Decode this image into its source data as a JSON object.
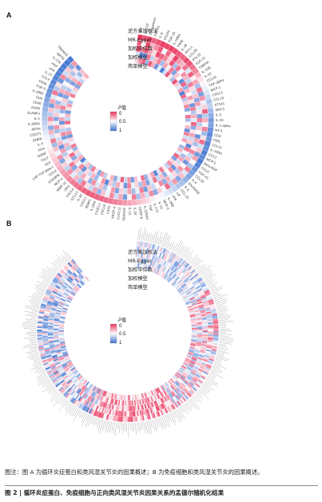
{
  "panel_a": {
    "letter": "A",
    "ring_labels": [
      "逆方差加权法",
      "MR-Egger",
      "加权中位数",
      "加权模型",
      "简单模型"
    ],
    "legend": {
      "title": "P",
      "title_suffix": "值",
      "ticks": [
        "0",
        "0.5",
        "1"
      ]
    },
    "genes": [
      "IL-7",
      "CCL23",
      "IFN-gamma",
      "FGFR1",
      "IL-8",
      "CD244",
      "FGF-19",
      "IL-10RA",
      "TNFB",
      "IL-18",
      "PD-L1",
      "CCL28",
      "IFN-23",
      "FGF-21",
      "TWEAK",
      "IL-12B",
      "IL-10",
      "CCL25",
      "TGF-alpha",
      "MCP-1",
      "CXCL5",
      "CCL19",
      "ST1A1",
      "SIRT2",
      "IL-5",
      "IL-33",
      "IL-1-alpha",
      "NT-3",
      "CD6",
      "Flt3L",
      "CCL11",
      "IL-15RA",
      "CCL3",
      "MCP-2",
      "Beta-NGF",
      "CCL4",
      "FGF-23",
      "CCL20",
      "IL-4",
      "EN-RAGE",
      "IL-6",
      "CCL-22",
      "LIF",
      "uPA",
      "IL-2RB",
      "MCP-3",
      "IL-10",
      "IL-17C",
      "TNF",
      "IL-22RA1",
      "CASP-8",
      "IL-24",
      "IL-13",
      "TRANCE",
      "CXCL11",
      "VEGF-A",
      "CST5",
      "CXCL6",
      "CX3CL1",
      "IL-2RA",
      "4EBP1",
      "CXCL1",
      "IL-20",
      "CCL13",
      "CXCL9",
      "OPG",
      "MMP-10",
      "MCP-4",
      "STAMPB",
      "CCL8",
      "LAP TGF-beta-1",
      "SCF",
      "TSLP",
      "GDNF",
      "ADA",
      "IL-5",
      "DNER",
      "CDCP1",
      "ARTN",
      "IL-20RA",
      "IL-1",
      "SLAMF1",
      "AXIN1",
      "CD40",
      "CD5",
      "IL-18R1",
      "FGF-5",
      "TRAIL",
      "CCL4",
      "IL-13",
      "uPA",
      "HGF",
      "IL-17A",
      "NRTN",
      "TRANCE"
    ],
    "heat_values": [
      [
        0.02,
        0.11,
        0.05,
        0.61,
        0.4
      ],
      [
        0.07,
        0.48,
        0.19,
        0.91,
        0.23
      ],
      [
        0.03,
        0.05,
        0.09,
        0.88,
        0.12
      ],
      [
        0.12,
        0.32,
        0.28,
        0.16,
        0.75
      ],
      [
        0.08,
        0.22,
        0.41,
        0.65,
        0.1
      ],
      [
        0.03,
        0.09,
        0.06,
        0.34,
        0.29
      ],
      [
        0.05,
        0.51,
        0.13,
        0.19,
        0.88
      ],
      [
        0.04,
        0.14,
        0.2,
        0.73,
        0.56
      ],
      [
        0.06,
        0.41,
        0.38,
        0.27,
        0.95
      ],
      [
        0.11,
        0.04,
        0.08,
        0.45,
        0.62
      ],
      [
        0.13,
        0.26,
        0.71,
        0.18,
        0.09
      ],
      [
        0.07,
        0.33,
        0.15,
        0.82,
        0.44
      ],
      [
        0.09,
        0.17,
        0.52,
        0.36,
        0.71
      ],
      [
        0.16,
        0.58,
        0.24,
        0.49,
        0.08
      ],
      [
        0.21,
        0.11,
        0.33,
        0.9,
        0.37
      ],
      [
        0.32,
        0.46,
        0.66,
        0.13,
        0.58
      ],
      [
        0.43,
        0.29,
        0.18,
        0.77,
        0.25
      ],
      [
        0.48,
        0.72,
        0.42,
        0.33,
        0.94
      ],
      [
        0.55,
        0.17,
        0.61,
        0.51,
        0.14
      ],
      [
        0.58,
        0.83,
        0.35,
        0.26,
        0.68
      ],
      [
        0.63,
        0.24,
        0.79,
        0.43,
        0.39
      ],
      [
        0.71,
        0.55,
        0.27,
        0.86,
        0.21
      ],
      [
        0.66,
        0.39,
        0.58,
        0.19,
        0.81
      ],
      [
        0.74,
        0.12,
        0.44,
        0.69,
        0.53
      ],
      [
        0.79,
        0.68,
        0.83,
        0.31,
        0.16
      ],
      [
        0.85,
        0.31,
        0.19,
        0.57,
        0.72
      ],
      [
        0.82,
        0.52,
        0.67,
        0.12,
        0.47
      ],
      [
        0.88,
        0.2,
        0.36,
        0.79,
        0.34
      ],
      [
        0.91,
        0.74,
        0.51,
        0.44,
        0.88
      ],
      [
        0.86,
        0.43,
        0.88,
        0.27,
        0.19
      ],
      [
        0.93,
        0.15,
        0.29,
        0.63,
        0.61
      ],
      [
        0.89,
        0.61,
        0.72,
        0.38,
        0.27
      ],
      [
        0.94,
        0.36,
        0.45,
        0.91,
        0.49
      ],
      [
        0.9,
        0.85,
        0.21,
        0.16,
        0.74
      ],
      [
        0.95,
        0.27,
        0.63,
        0.52,
        0.32
      ],
      [
        0.92,
        0.49,
        0.34,
        0.73,
        0.57
      ],
      [
        0.88,
        0.71,
        0.86,
        0.28,
        0.12
      ],
      [
        0.84,
        0.19,
        0.48,
        0.61,
        0.83
      ],
      [
        0.81,
        0.58,
        0.25,
        0.41,
        0.39
      ],
      [
        0.77,
        0.34,
        0.69,
        0.87,
        0.22
      ],
      [
        0.72,
        0.81,
        0.41,
        0.23,
        0.66
      ],
      [
        0.69,
        0.25,
        0.57,
        0.49,
        0.45
      ],
      [
        0.65,
        0.67,
        0.31,
        0.79,
        0.18
      ],
      [
        0.61,
        0.14,
        0.78,
        0.35,
        0.59
      ],
      [
        0.57,
        0.53,
        0.22,
        0.64,
        0.91
      ],
      [
        0.53,
        0.38,
        0.49,
        0.17,
        0.28
      ],
      [
        0.49,
        0.79,
        0.64,
        0.58,
        0.43
      ],
      [
        0.46,
        0.22,
        0.37,
        0.82,
        0.77
      ],
      [
        0.42,
        0.61,
        0.84,
        0.26,
        0.15
      ],
      [
        0.38,
        0.31,
        0.19,
        0.71,
        0.52
      ],
      [
        0.35,
        0.72,
        0.56,
        0.39,
        0.36
      ],
      [
        0.31,
        0.18,
        0.73,
        0.55,
        0.84
      ],
      [
        0.28,
        0.47,
        0.28,
        0.19,
        0.24
      ],
      [
        0.25,
        0.84,
        0.61,
        0.86,
        0.63
      ],
      [
        0.22,
        0.29,
        0.39,
        0.45,
        0.11
      ],
      [
        0.19,
        0.62,
        0.82,
        0.29,
        0.57
      ],
      [
        0.17,
        0.21,
        0.26,
        0.68,
        0.79
      ],
      [
        0.15,
        0.55,
        0.53,
        0.37,
        0.31
      ],
      [
        0.13,
        0.36,
        0.71,
        0.92,
        0.48
      ],
      [
        0.12,
        0.76,
        0.34,
        0.24,
        0.67
      ],
      [
        0.11,
        0.27,
        0.59,
        0.51,
        0.26
      ],
      [
        0.1,
        0.64,
        0.23,
        0.75,
        0.81
      ],
      [
        0.12,
        0.42,
        0.77,
        0.32,
        0.44
      ],
      [
        0.14,
        0.18,
        0.46,
        0.63,
        0.19
      ],
      [
        0.16,
        0.71,
        0.29,
        0.41,
        0.72
      ],
      [
        0.18,
        0.33,
        0.65,
        0.88,
        0.35
      ],
      [
        0.21,
        0.57,
        0.38,
        0.21,
        0.58
      ],
      [
        0.24,
        0.23,
        0.81,
        0.54,
        0.93
      ],
      [
        0.27,
        0.66,
        0.17,
        0.36,
        0.29
      ],
      [
        0.31,
        0.39,
        0.54,
        0.79,
        0.61
      ],
      [
        0.34,
        0.81,
        0.42,
        0.14,
        0.41
      ],
      [
        0.37,
        0.24,
        0.68,
        0.47,
        0.76
      ],
      [
        0.4,
        0.53,
        0.26,
        0.69,
        0.17
      ],
      [
        0.44,
        0.35,
        0.87,
        0.33,
        0.55
      ],
      [
        0.47,
        0.74,
        0.33,
        0.58,
        0.38
      ],
      [
        0.51,
        0.19,
        0.62,
        0.84,
        0.86
      ],
      [
        0.54,
        0.61,
        0.45,
        0.22,
        0.24
      ],
      [
        0.58,
        0.31,
        0.73,
        0.66,
        0.69
      ],
      [
        0.62,
        0.79,
        0.24,
        0.41,
        0.47
      ],
      [
        0.66,
        0.41,
        0.55,
        0.87,
        0.13
      ],
      [
        0.69,
        0.22,
        0.81,
        0.29,
        0.64
      ],
      [
        0.73,
        0.67,
        0.38,
        0.53,
        0.33
      ],
      [
        0.76,
        0.36,
        0.61,
        0.76,
        0.85
      ],
      [
        0.79,
        0.83,
        0.29,
        0.19,
        0.42
      ],
      [
        0.82,
        0.28,
        0.74,
        0.62,
        0.27
      ],
      [
        0.85,
        0.58,
        0.47,
        0.38,
        0.71
      ],
      [
        0.87,
        0.17,
        0.85,
        0.81,
        0.52
      ],
      [
        0.89,
        0.69,
        0.31,
        0.27,
        0.18
      ],
      [
        0.91,
        0.43,
        0.66,
        0.69,
        0.59
      ],
      [
        0.93,
        0.86,
        0.52,
        0.46,
        0.37
      ],
      [
        0.94,
        0.21,
        0.79,
        0.83,
        0.82
      ],
      [
        0.95,
        0.63,
        0.36,
        0.31,
        0.23
      ],
      [
        0.96,
        0.37,
        0.71,
        0.57,
        0.66
      ],
      [
        0.97,
        0.78,
        0.43,
        0.74,
        0.45
      ],
      [
        0.96,
        0.25,
        0.88,
        0.35,
        0.31
      ]
    ]
  },
  "panel_b": {
    "letter": "B",
    "ring_labels": [
      "逆方差加权法",
      "MR-Egger",
      "加权中位数",
      "加权模型",
      "简单模型"
    ],
    "legend": {
      "title": "P",
      "title_suffix": "值",
      "ticks": [
        "0",
        "0.5",
        "1"
      ]
    }
  },
  "colors": {
    "low": "#e8325a",
    "mid": "#ffffff",
    "high": "#3a6fcf",
    "ring_bg": "#f2f2f2",
    "label_gray": "#555555"
  },
  "caption": {
    "text": "图注：图 A 为循环炎症蛋白和类风湿关节炎的因果概述；B 为免疫细胞和类风湿关节炎的因果概述。",
    "title": "图 2 | 循环炎症蛋白、免疫细胞与正向类风湿关节炎因果关系的孟德尔随机化结果"
  }
}
